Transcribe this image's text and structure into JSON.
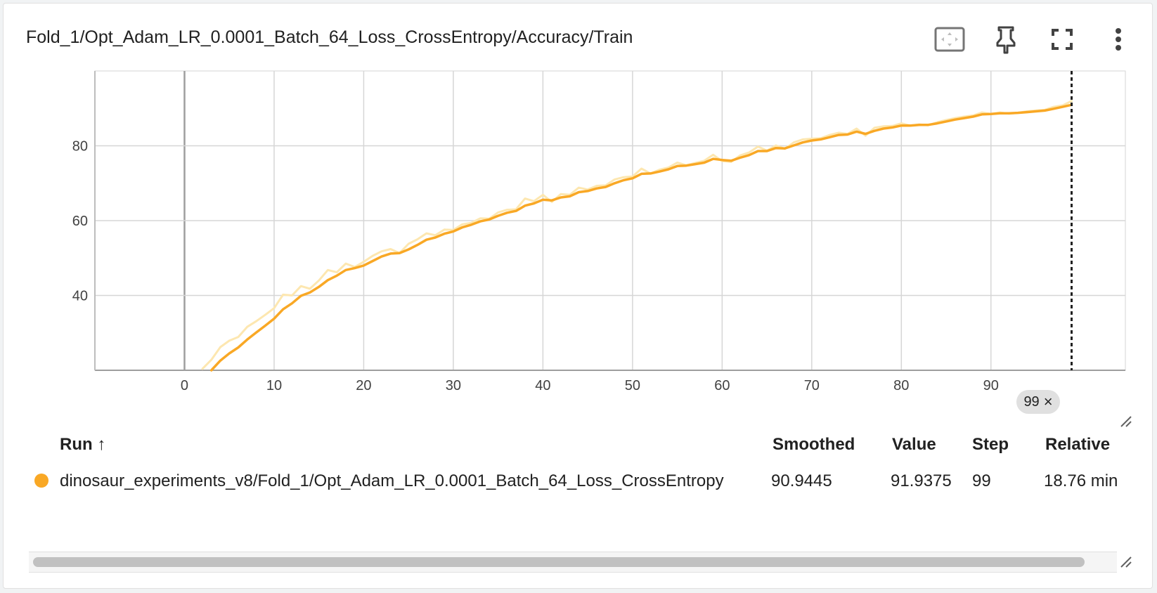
{
  "card": {
    "title": "Fold_1/Opt_Adam_LR_0.0001_Batch_64_Loss_CrossEntropy/Accuracy/Train"
  },
  "toolbar": {
    "icons": [
      "fit-to-data-icon",
      "pin-icon",
      "fullscreen-icon",
      "more-vert-icon"
    ]
  },
  "chart_data": {
    "type": "line",
    "title": "",
    "xlabel": "",
    "ylabel": "",
    "xlim": [
      -10,
      105
    ],
    "ylim": [
      20,
      100
    ],
    "x_ticks": [
      0,
      10,
      20,
      30,
      40,
      50,
      60,
      70,
      80,
      90
    ],
    "y_ticks": [
      40,
      60,
      80
    ],
    "cursor_step": "99",
    "grid": true,
    "series": [
      {
        "role": "raw",
        "color": "#fde7b0",
        "points": [
          [
            2,
            20.4
          ],
          [
            3,
            22.8
          ],
          [
            4,
            26.2
          ],
          [
            5,
            27.9
          ],
          [
            6,
            28.9
          ],
          [
            7,
            31.6
          ],
          [
            8,
            33.1
          ],
          [
            9,
            34.8
          ],
          [
            10,
            36.6
          ],
          [
            11,
            40.2
          ],
          [
            12,
            40.0
          ],
          [
            13,
            42.5
          ],
          [
            14,
            41.8
          ],
          [
            15,
            44.0
          ],
          [
            16,
            46.8
          ],
          [
            17,
            46.2
          ],
          [
            18,
            48.5
          ],
          [
            19,
            47.6
          ],
          [
            20,
            49.0
          ],
          [
            21,
            50.6
          ],
          [
            22,
            51.8
          ],
          [
            23,
            52.4
          ],
          [
            24,
            51.3
          ],
          [
            25,
            53.8
          ],
          [
            26,
            55.0
          ],
          [
            27,
            56.6
          ],
          [
            28,
            56.1
          ],
          [
            29,
            57.6
          ],
          [
            30,
            57.5
          ],
          [
            31,
            59.0
          ],
          [
            32,
            59.4
          ],
          [
            33,
            60.6
          ],
          [
            34,
            60.5
          ],
          [
            35,
            62.2
          ],
          [
            36,
            62.9
          ],
          [
            37,
            63.0
          ],
          [
            38,
            65.9
          ],
          [
            39,
            65.2
          ],
          [
            40,
            66.9
          ],
          [
            41,
            65.0
          ],
          [
            42,
            67.1
          ],
          [
            43,
            66.9
          ],
          [
            44,
            68.8
          ],
          [
            45,
            68.3
          ],
          [
            46,
            69.3
          ],
          [
            47,
            69.4
          ],
          [
            48,
            71.0
          ],
          [
            49,
            71.6
          ],
          [
            50,
            71.8
          ],
          [
            51,
            73.9
          ],
          [
            52,
            72.6
          ],
          [
            53,
            73.6
          ],
          [
            54,
            74.2
          ],
          [
            55,
            75.5
          ],
          [
            56,
            74.8
          ],
          [
            57,
            75.4
          ],
          [
            58,
            76.0
          ],
          [
            59,
            77.6
          ],
          [
            60,
            75.9
          ],
          [
            61,
            75.7
          ],
          [
            62,
            77.4
          ],
          [
            63,
            78.2
          ],
          [
            64,
            79.8
          ],
          [
            65,
            78.7
          ],
          [
            66,
            80.1
          ],
          [
            67,
            79.2
          ],
          [
            68,
            80.9
          ],
          [
            69,
            81.7
          ],
          [
            70,
            81.9
          ],
          [
            71,
            82.0
          ],
          [
            72,
            82.9
          ],
          [
            73,
            83.5
          ],
          [
            74,
            83.2
          ],
          [
            75,
            84.6
          ],
          [
            76,
            82.7
          ],
          [
            77,
            84.8
          ],
          [
            78,
            85.2
          ],
          [
            79,
            85.3
          ],
          [
            80,
            86.0
          ],
          [
            81,
            85.4
          ],
          [
            82,
            85.7
          ],
          [
            83,
            85.5
          ],
          [
            84,
            86.3
          ],
          [
            85,
            86.9
          ],
          [
            86,
            87.4
          ],
          [
            87,
            87.8
          ],
          [
            88,
            88.1
          ],
          [
            89,
            88.9
          ],
          [
            90,
            88.5
          ],
          [
            91,
            88.9
          ],
          [
            92,
            88.6
          ],
          [
            93,
            88.8
          ],
          [
            94,
            89.2
          ],
          [
            95,
            89.4
          ],
          [
            96,
            89.6
          ],
          [
            97,
            90.4
          ],
          [
            98,
            90.8
          ],
          [
            99,
            91.9375
          ]
        ]
      },
      {
        "role": "smoothed",
        "color": "#f9a825",
        "points": [
          [
            3,
            20.0
          ],
          [
            4,
            22.6
          ],
          [
            5,
            24.5
          ],
          [
            6,
            26.1
          ],
          [
            7,
            28.2
          ],
          [
            8,
            30.1
          ],
          [
            9,
            31.9
          ],
          [
            10,
            33.8
          ],
          [
            11,
            36.3
          ],
          [
            12,
            37.9
          ],
          [
            13,
            39.9
          ],
          [
            14,
            40.8
          ],
          [
            15,
            42.3
          ],
          [
            16,
            44.1
          ],
          [
            17,
            45.3
          ],
          [
            18,
            46.8
          ],
          [
            19,
            47.3
          ],
          [
            20,
            48.0
          ],
          [
            21,
            49.2
          ],
          [
            22,
            50.4
          ],
          [
            23,
            51.2
          ],
          [
            24,
            51.3
          ],
          [
            25,
            52.3
          ],
          [
            26,
            53.5
          ],
          [
            27,
            54.9
          ],
          [
            28,
            55.5
          ],
          [
            29,
            56.5
          ],
          [
            30,
            57.1
          ],
          [
            31,
            58.2
          ],
          [
            32,
            58.9
          ],
          [
            33,
            59.8
          ],
          [
            34,
            60.3
          ],
          [
            35,
            61.3
          ],
          [
            36,
            62.1
          ],
          [
            37,
            62.6
          ],
          [
            38,
            64.0
          ],
          [
            39,
            64.6
          ],
          [
            40,
            65.6
          ],
          [
            41,
            65.4
          ],
          [
            42,
            66.2
          ],
          [
            43,
            66.5
          ],
          [
            44,
            67.6
          ],
          [
            45,
            67.9
          ],
          [
            46,
            68.6
          ],
          [
            47,
            69.0
          ],
          [
            48,
            70.0
          ],
          [
            49,
            70.8
          ],
          [
            50,
            71.3
          ],
          [
            51,
            72.5
          ],
          [
            52,
            72.6
          ],
          [
            53,
            73.1
          ],
          [
            54,
            73.7
          ],
          [
            55,
            74.6
          ],
          [
            56,
            74.7
          ],
          [
            57,
            75.1
          ],
          [
            58,
            75.5
          ],
          [
            59,
            76.5
          ],
          [
            60,
            76.2
          ],
          [
            61,
            76.0
          ],
          [
            62,
            76.8
          ],
          [
            63,
            77.5
          ],
          [
            64,
            78.6
          ],
          [
            65,
            78.6
          ],
          [
            66,
            79.4
          ],
          [
            67,
            79.3
          ],
          [
            68,
            80.1
          ],
          [
            69,
            80.9
          ],
          [
            70,
            81.4
          ],
          [
            71,
            81.7
          ],
          [
            72,
            82.3
          ],
          [
            73,
            82.9
          ],
          [
            74,
            83.0
          ],
          [
            75,
            83.8
          ],
          [
            76,
            83.2
          ],
          [
            77,
            84.0
          ],
          [
            78,
            84.6
          ],
          [
            79,
            84.9
          ],
          [
            80,
            85.4
          ],
          [
            81,
            85.4
          ],
          [
            82,
            85.6
          ],
          [
            83,
            85.6
          ],
          [
            84,
            86.0
          ],
          [
            85,
            86.5
          ],
          [
            86,
            87.0
          ],
          [
            87,
            87.4
          ],
          [
            88,
            87.8
          ],
          [
            89,
            88.4
          ],
          [
            90,
            88.5
          ],
          [
            91,
            88.7
          ],
          [
            92,
            88.7
          ],
          [
            93,
            88.8
          ],
          [
            94,
            89.0
          ],
          [
            95,
            89.2
          ],
          [
            96,
            89.4
          ],
          [
            97,
            89.9
          ],
          [
            98,
            90.4
          ],
          [
            99,
            90.9445
          ]
        ]
      }
    ]
  },
  "table": {
    "headers": {
      "run": "Run ↑",
      "smoothed": "Smoothed",
      "value": "Value",
      "step": "Step",
      "relative": "Relative"
    },
    "rows": [
      {
        "color": "#f9a825",
        "run": "dinosaur_experiments_v8/Fold_1/Opt_Adam_LR_0.0001_Batch_64_Loss_CrossEntropy",
        "smoothed": "90.9445",
        "value": "91.9375",
        "step": "99",
        "relative": "18.76 min"
      }
    ]
  }
}
